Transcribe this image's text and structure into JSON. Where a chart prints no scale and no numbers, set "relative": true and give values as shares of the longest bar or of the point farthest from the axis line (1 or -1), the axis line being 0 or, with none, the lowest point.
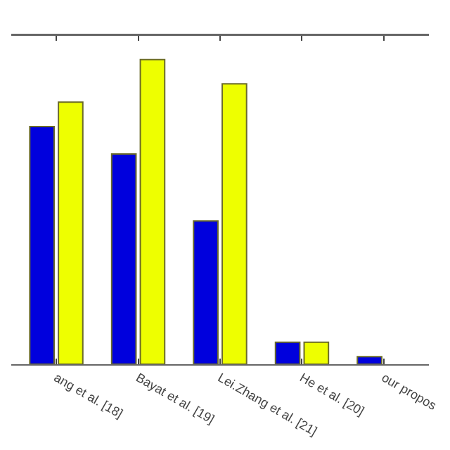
{
  "chart_data": {
    "type": "bar",
    "relative": true,
    "categories": [
      "ang et al. [18]",
      "Bayat et al. [19]",
      "Lei.Zhang et al. [21]",
      "He et al. [20]",
      "our propos"
    ],
    "series": [
      {
        "color": "#0000dd",
        "values": [
          0.78,
          0.69,
          0.47,
          0.072,
          0.025
        ]
      },
      {
        "color": "#eeff00",
        "values": [
          0.86,
          1.0,
          0.92,
          0.072,
          null
        ]
      }
    ]
  }
}
